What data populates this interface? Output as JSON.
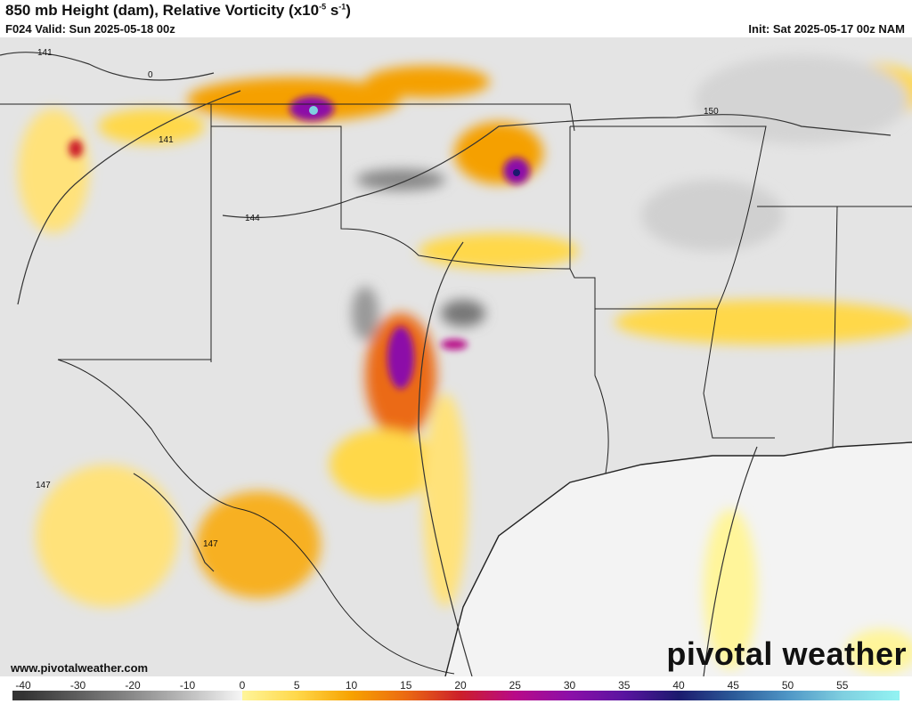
{
  "header": {
    "title": "850 mb Height (dam), Relative Vorticity (x10",
    "title_exp1": "-5",
    "title_mid": " s",
    "title_exp2": "-1",
    "title_end": ")",
    "valid": "F024 Valid: Sun 2025-05-18 00z",
    "init": "Init: Sat 2025-05-17 00z NAM"
  },
  "map": {
    "contour_labels": [
      "141",
      "141",
      "144",
      "150",
      "147",
      "147",
      "0"
    ],
    "background_color": "#e6e6e6",
    "gulf_color": "#f4f4f4"
  },
  "footer": {
    "url": "www.pivotalweather.com",
    "brand": "pivotal weather"
  },
  "colorbar": {
    "ticks": [
      "-40",
      "-30",
      "-20",
      "-10",
      "0",
      "5",
      "10",
      "15",
      "20",
      "25",
      "30",
      "35",
      "40",
      "45",
      "50",
      "55"
    ],
    "stops": [
      {
        "v": -40,
        "c": "#333333"
      },
      {
        "v": -20,
        "c": "#8a8a8a"
      },
      {
        "v": -10,
        "c": "#bdbdbd"
      },
      {
        "v": 0,
        "c": "#f6f6f6"
      },
      {
        "v": 0.01,
        "c": "#fff59a"
      },
      {
        "v": 5,
        "c": "#ffd84a"
      },
      {
        "v": 10,
        "c": "#f7a200"
      },
      {
        "v": 15,
        "c": "#eb6a12"
      },
      {
        "v": 20,
        "c": "#cc1f2a"
      },
      {
        "v": 25,
        "c": "#b80a88"
      },
      {
        "v": 30,
        "c": "#8c0fa8"
      },
      {
        "v": 35,
        "c": "#5a14a0"
      },
      {
        "v": 40,
        "c": "#1b1a6e"
      },
      {
        "v": 45,
        "c": "#2b5a98"
      },
      {
        "v": 50,
        "c": "#4f96c6"
      },
      {
        "v": 55,
        "c": "#7fcfe0"
      },
      {
        "v": 60,
        "c": "#92f2f2"
      }
    ]
  }
}
